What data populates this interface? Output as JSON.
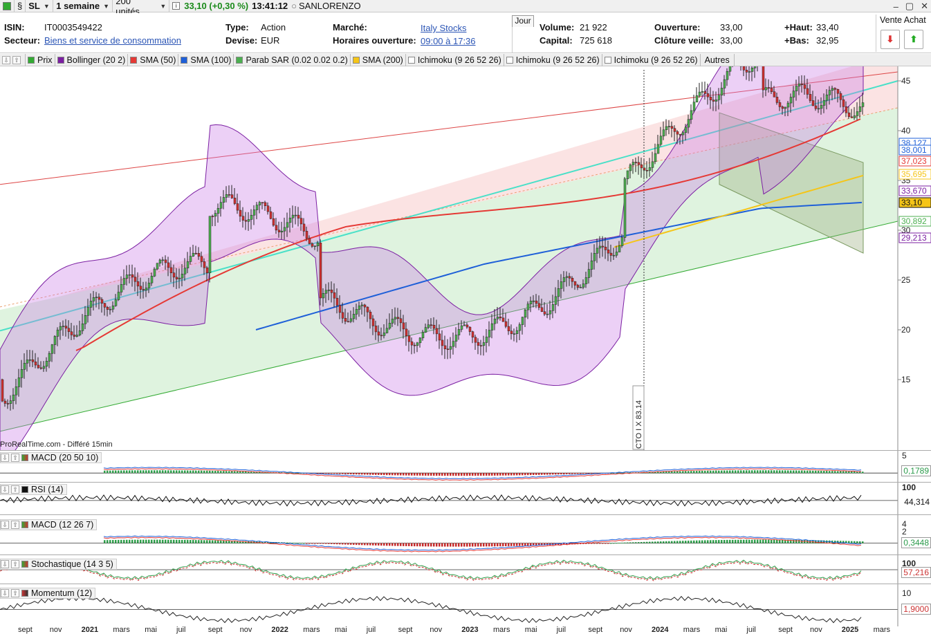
{
  "toolbar": {
    "ticker": "SL",
    "period": "1 semaine",
    "units": "200 unités",
    "price": "33,10 (+0,30 %)",
    "time": "13:41:12",
    "name": "SANLORENZO"
  },
  "info": {
    "isin_label": "ISIN:",
    "isin": "IT0003549422",
    "secteur_label": "Secteur:",
    "secteur": "Biens et service de consommation",
    "type_label": "Type:",
    "type": "Action",
    "devise_label": "Devise:",
    "devise": "EUR",
    "marche_label": "Marché:",
    "marche": "Italy Stocks",
    "horaires_label": "Horaires ouverture:",
    "horaires": "09:00 à 17:36",
    "jour_tab": "Jour",
    "volume_label": "Volume:",
    "volume": "21 922",
    "capital_label": "Capital:",
    "capital": "725 618",
    "ouverture_label": "Ouverture:",
    "ouverture": "33,00",
    "cloture_label": "Clôture veille:",
    "cloture": "33,00",
    "haut_label": "+Haut:",
    "haut": "33,40",
    "bas_label": "+Bas:",
    "bas": "32,95",
    "trade_title": "Vente Achat"
  },
  "legend": {
    "items": [
      {
        "label": "Prix",
        "color": "#33aa33"
      },
      {
        "label": "Bollinger (20 2)",
        "color": "#7b1fa2"
      },
      {
        "label": "SMA (50)",
        "color": "#e53935"
      },
      {
        "label": "SMA (100)",
        "color": "#1e5fd8"
      },
      {
        "label": "Parab SAR (0.02 0.02 0.2)",
        "color": "#4caf50"
      },
      {
        "label": "SMA (200)",
        "color": "#f5c518"
      },
      {
        "label": "Ichimoku (9 26 52 26)",
        "color": "#ffffff"
      },
      {
        "label": "Ichimoku (9 26 52 26)",
        "color": "#ffffff"
      },
      {
        "label": "Ichimoku (9 26 52 26)",
        "color": "#ffffff"
      }
    ],
    "more": "Autres"
  },
  "main_chart": {
    "source": "ProRealTime.com - Différé 15min",
    "annotation": "CTO I X 83.14",
    "yticks": [
      "45",
      "40",
      "35",
      "30",
      "25",
      "20",
      "15"
    ],
    "price_labels": [
      {
        "value": "38,127",
        "color": "#1e5fd8"
      },
      {
        "value": "38,001",
        "color": "#1e5fd8"
      },
      {
        "value": "37,023",
        "color": "#e53935"
      },
      {
        "value": "35,695",
        "color": "#f5c518"
      },
      {
        "value": "33,670",
        "color": "#7b1fa2"
      },
      {
        "value": "33,10",
        "color": "#111111"
      },
      {
        "value": "30,892",
        "color": "#4caf50"
      },
      {
        "value": "29,213",
        "color": "#7b1fa2"
      }
    ],
    "last_price_bg": "#f5c518"
  },
  "panels": {
    "macd1": {
      "title": "MACD (20 50 10)",
      "top_tick": "5",
      "value": "0,1789"
    },
    "rsi": {
      "title": "RSI (14)",
      "top_tick": "100",
      "value": "44,314"
    },
    "macd2": {
      "title": "MACD (12 26 7)",
      "top_tick": "4",
      "mid_tick": "2",
      "value": "0,3448"
    },
    "stoch": {
      "title": "Stochastique (14 3 5)",
      "top_tick": "100",
      "value": "57,216"
    },
    "momentum": {
      "title": "Momentum (12)",
      "top_tick": "10",
      "value": "1,9000"
    }
  },
  "xaxis": [
    "sept",
    "nov",
    "2021",
    "mars",
    "mai",
    "juil",
    "sept",
    "nov",
    "2022",
    "mars",
    "mai",
    "juil",
    "sept",
    "nov",
    "2023",
    "mars",
    "mai",
    "juil",
    "sept",
    "nov",
    "2024",
    "mars",
    "mai",
    "juil",
    "sept",
    "nov",
    "2025",
    "mars"
  ]
}
